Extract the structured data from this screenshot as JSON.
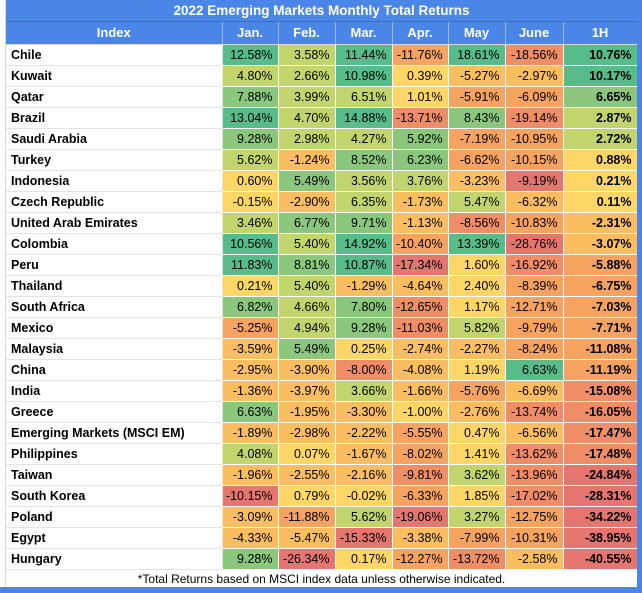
{
  "title": "2022 Emerging Markets Monthly Total Returns",
  "footnote": "*Total Returns based on MSCI index data unless otherwise indicated.",
  "colors": {
    "header_blue": "#4a86e8",
    "header_text": "#ffffff",
    "gridline": "#d9d9d9",
    "palette": {
      "A": "#57bb8a",
      "B": "#8ac77d",
      "C": "#c2d56c",
      "Y": "#fdd666",
      "E": "#fabd60",
      "F": "#f5a35f",
      "G": "#ef8e66",
      "R": "#e5766f"
    }
  },
  "chart_data": {
    "type": "heatmap",
    "title": "2022 Emerging Markets Monthly Total Returns",
    "value_format": "percent_2dp",
    "legend_note": "cell color scale: green = high return, gold = near zero, red = low return",
    "columns": [
      "Index",
      "Jan.",
      "Feb.",
      "Mar.",
      "Apr.",
      "May",
      "June",
      "1H"
    ],
    "rows": [
      {
        "index": "Chile",
        "values": [
          12.58,
          3.58,
          11.44,
          -11.76,
          18.61,
          -18.56,
          10.76
        ],
        "colors": [
          "A",
          "C",
          "A",
          "F",
          "A",
          "G",
          "A"
        ]
      },
      {
        "index": "Kuwait",
        "values": [
          4.8,
          2.66,
          10.98,
          0.39,
          -5.27,
          -2.97,
          10.17
        ],
        "colors": [
          "C",
          "C",
          "A",
          "Y",
          "E",
          "E",
          "A"
        ]
      },
      {
        "index": "Qatar",
        "values": [
          7.88,
          3.99,
          6.51,
          1.01,
          -5.91,
          -6.09,
          6.65
        ],
        "colors": [
          "B",
          "C",
          "C",
          "Y",
          "F",
          "F",
          "B"
        ]
      },
      {
        "index": "Brazil",
        "values": [
          13.04,
          4.7,
          14.88,
          -13.71,
          8.43,
          -19.14,
          2.87
        ],
        "colors": [
          "A",
          "C",
          "A",
          "G",
          "B",
          "G",
          "C"
        ]
      },
      {
        "index": "Saudi Arabia",
        "values": [
          9.28,
          2.98,
          4.27,
          5.92,
          -7.19,
          -10.95,
          2.72
        ],
        "colors": [
          "B",
          "C",
          "C",
          "B",
          "F",
          "F",
          "C"
        ]
      },
      {
        "index": "Turkey",
        "values": [
          5.62,
          -1.24,
          8.52,
          6.23,
          -6.62,
          -10.15,
          0.88
        ],
        "colors": [
          "C",
          "E",
          "B",
          "B",
          "F",
          "F",
          "Y"
        ]
      },
      {
        "index": "Indonesia",
        "values": [
          0.6,
          5.49,
          3.56,
          3.76,
          -3.23,
          -9.19,
          0.21
        ],
        "colors": [
          "Y",
          "B",
          "C",
          "C",
          "E",
          "R",
          "Y"
        ]
      },
      {
        "index": "Czech Republic",
        "values": [
          -0.15,
          -2.9,
          6.35,
          -1.73,
          5.47,
          -6.32,
          0.11
        ],
        "colors": [
          "Y",
          "E",
          "C",
          "E",
          "C",
          "E",
          "Y"
        ]
      },
      {
        "index": "United Arab Emirates",
        "values": [
          3.46,
          6.77,
          9.71,
          -1.13,
          -8.56,
          -10.83,
          -2.31
        ],
        "colors": [
          "C",
          "B",
          "B",
          "E",
          "G",
          "F",
          "E"
        ]
      },
      {
        "index": "Colombia",
        "values": [
          10.56,
          5.4,
          14.92,
          -10.4,
          13.39,
          -28.76,
          -3.07
        ],
        "colors": [
          "A",
          "C",
          "A",
          "F",
          "A",
          "R",
          "E"
        ]
      },
      {
        "index": "Peru",
        "values": [
          11.83,
          8.81,
          10.87,
          -17.34,
          1.6,
          -16.92,
          -5.88
        ],
        "colors": [
          "A",
          "B",
          "A",
          "R",
          "Y",
          "G",
          "F"
        ]
      },
      {
        "index": "Thailand",
        "values": [
          0.21,
          5.4,
          -1.29,
          -4.64,
          2.4,
          -8.39,
          -6.75
        ],
        "colors": [
          "Y",
          "C",
          "E",
          "E",
          "Y",
          "F",
          "F"
        ]
      },
      {
        "index": "South Africa",
        "values": [
          6.82,
          4.66,
          7.8,
          -12.65,
          1.17,
          -12.71,
          -7.03
        ],
        "colors": [
          "B",
          "C",
          "B",
          "G",
          "Y",
          "F",
          "F"
        ]
      },
      {
        "index": "Mexico",
        "values": [
          -5.25,
          4.94,
          9.28,
          -11.03,
          5.82,
          -9.79,
          -7.71
        ],
        "colors": [
          "F",
          "C",
          "B",
          "G",
          "C",
          "F",
          "F"
        ]
      },
      {
        "index": "Malaysia",
        "values": [
          -3.59,
          5.49,
          0.25,
          -2.74,
          -2.27,
          -8.24,
          -11.08
        ],
        "colors": [
          "E",
          "B",
          "Y",
          "E",
          "E",
          "F",
          "F"
        ]
      },
      {
        "index": "China",
        "values": [
          -2.95,
          -3.9,
          -8.0,
          -4.08,
          1.19,
          6.63,
          -11.19
        ],
        "colors": [
          "E",
          "E",
          "G",
          "E",
          "Y",
          "A",
          "F"
        ]
      },
      {
        "index": "India",
        "values": [
          -1.36,
          -3.97,
          3.66,
          -1.66,
          -5.76,
          -6.69,
          -15.08
        ],
        "colors": [
          "E",
          "E",
          "C",
          "E",
          "F",
          "E",
          "G"
        ]
      },
      {
        "index": "Greece",
        "values": [
          6.63,
          -1.95,
          -3.3,
          -1.0,
          -2.76,
          -13.74,
          -16.05
        ],
        "colors": [
          "B",
          "E",
          "E",
          "Y",
          "E",
          "G",
          "G"
        ]
      },
      {
        "index": "Emerging Markets (MSCI EM)",
        "values": [
          -1.89,
          -2.98,
          -2.22,
          -5.55,
          0.47,
          -6.56,
          -17.47
        ],
        "colors": [
          "E",
          "E",
          "E",
          "F",
          "Y",
          "E",
          "G"
        ]
      },
      {
        "index": "Philippines",
        "values": [
          4.08,
          0.07,
          -1.67,
          -8.02,
          1.41,
          -13.62,
          -17.48
        ],
        "colors": [
          "C",
          "Y",
          "E",
          "F",
          "Y",
          "G",
          "G"
        ]
      },
      {
        "index": "Taiwan",
        "values": [
          -1.96,
          -2.55,
          -2.16,
          -9.81,
          3.62,
          -13.96,
          -24.84
        ],
        "colors": [
          "E",
          "E",
          "E",
          "G",
          "C",
          "G",
          "R"
        ]
      },
      {
        "index": "South Korea",
        "values": [
          -10.15,
          0.79,
          -0.02,
          -6.33,
          1.85,
          -17.02,
          -28.31
        ],
        "colors": [
          "R",
          "Y",
          "Y",
          "F",
          "Y",
          "G",
          "R"
        ]
      },
      {
        "index": "Poland",
        "values": [
          -3.09,
          -11.88,
          5.62,
          -19.06,
          3.27,
          -12.75,
          -34.22
        ],
        "colors": [
          "E",
          "F",
          "C",
          "R",
          "C",
          "F",
          "R"
        ]
      },
      {
        "index": "Egypt",
        "values": [
          -4.33,
          -5.47,
          -15.33,
          -3.38,
          -7.99,
          -10.31,
          -38.95
        ],
        "colors": [
          "E",
          "E",
          "R",
          "E",
          "F",
          "F",
          "R"
        ]
      },
      {
        "index": "Hungary",
        "values": [
          9.28,
          -26.34,
          0.17,
          -12.27,
          -13.72,
          -2.58,
          -40.55
        ],
        "colors": [
          "B",
          "R",
          "Y",
          "F",
          "G",
          "E",
          "R"
        ]
      }
    ]
  }
}
